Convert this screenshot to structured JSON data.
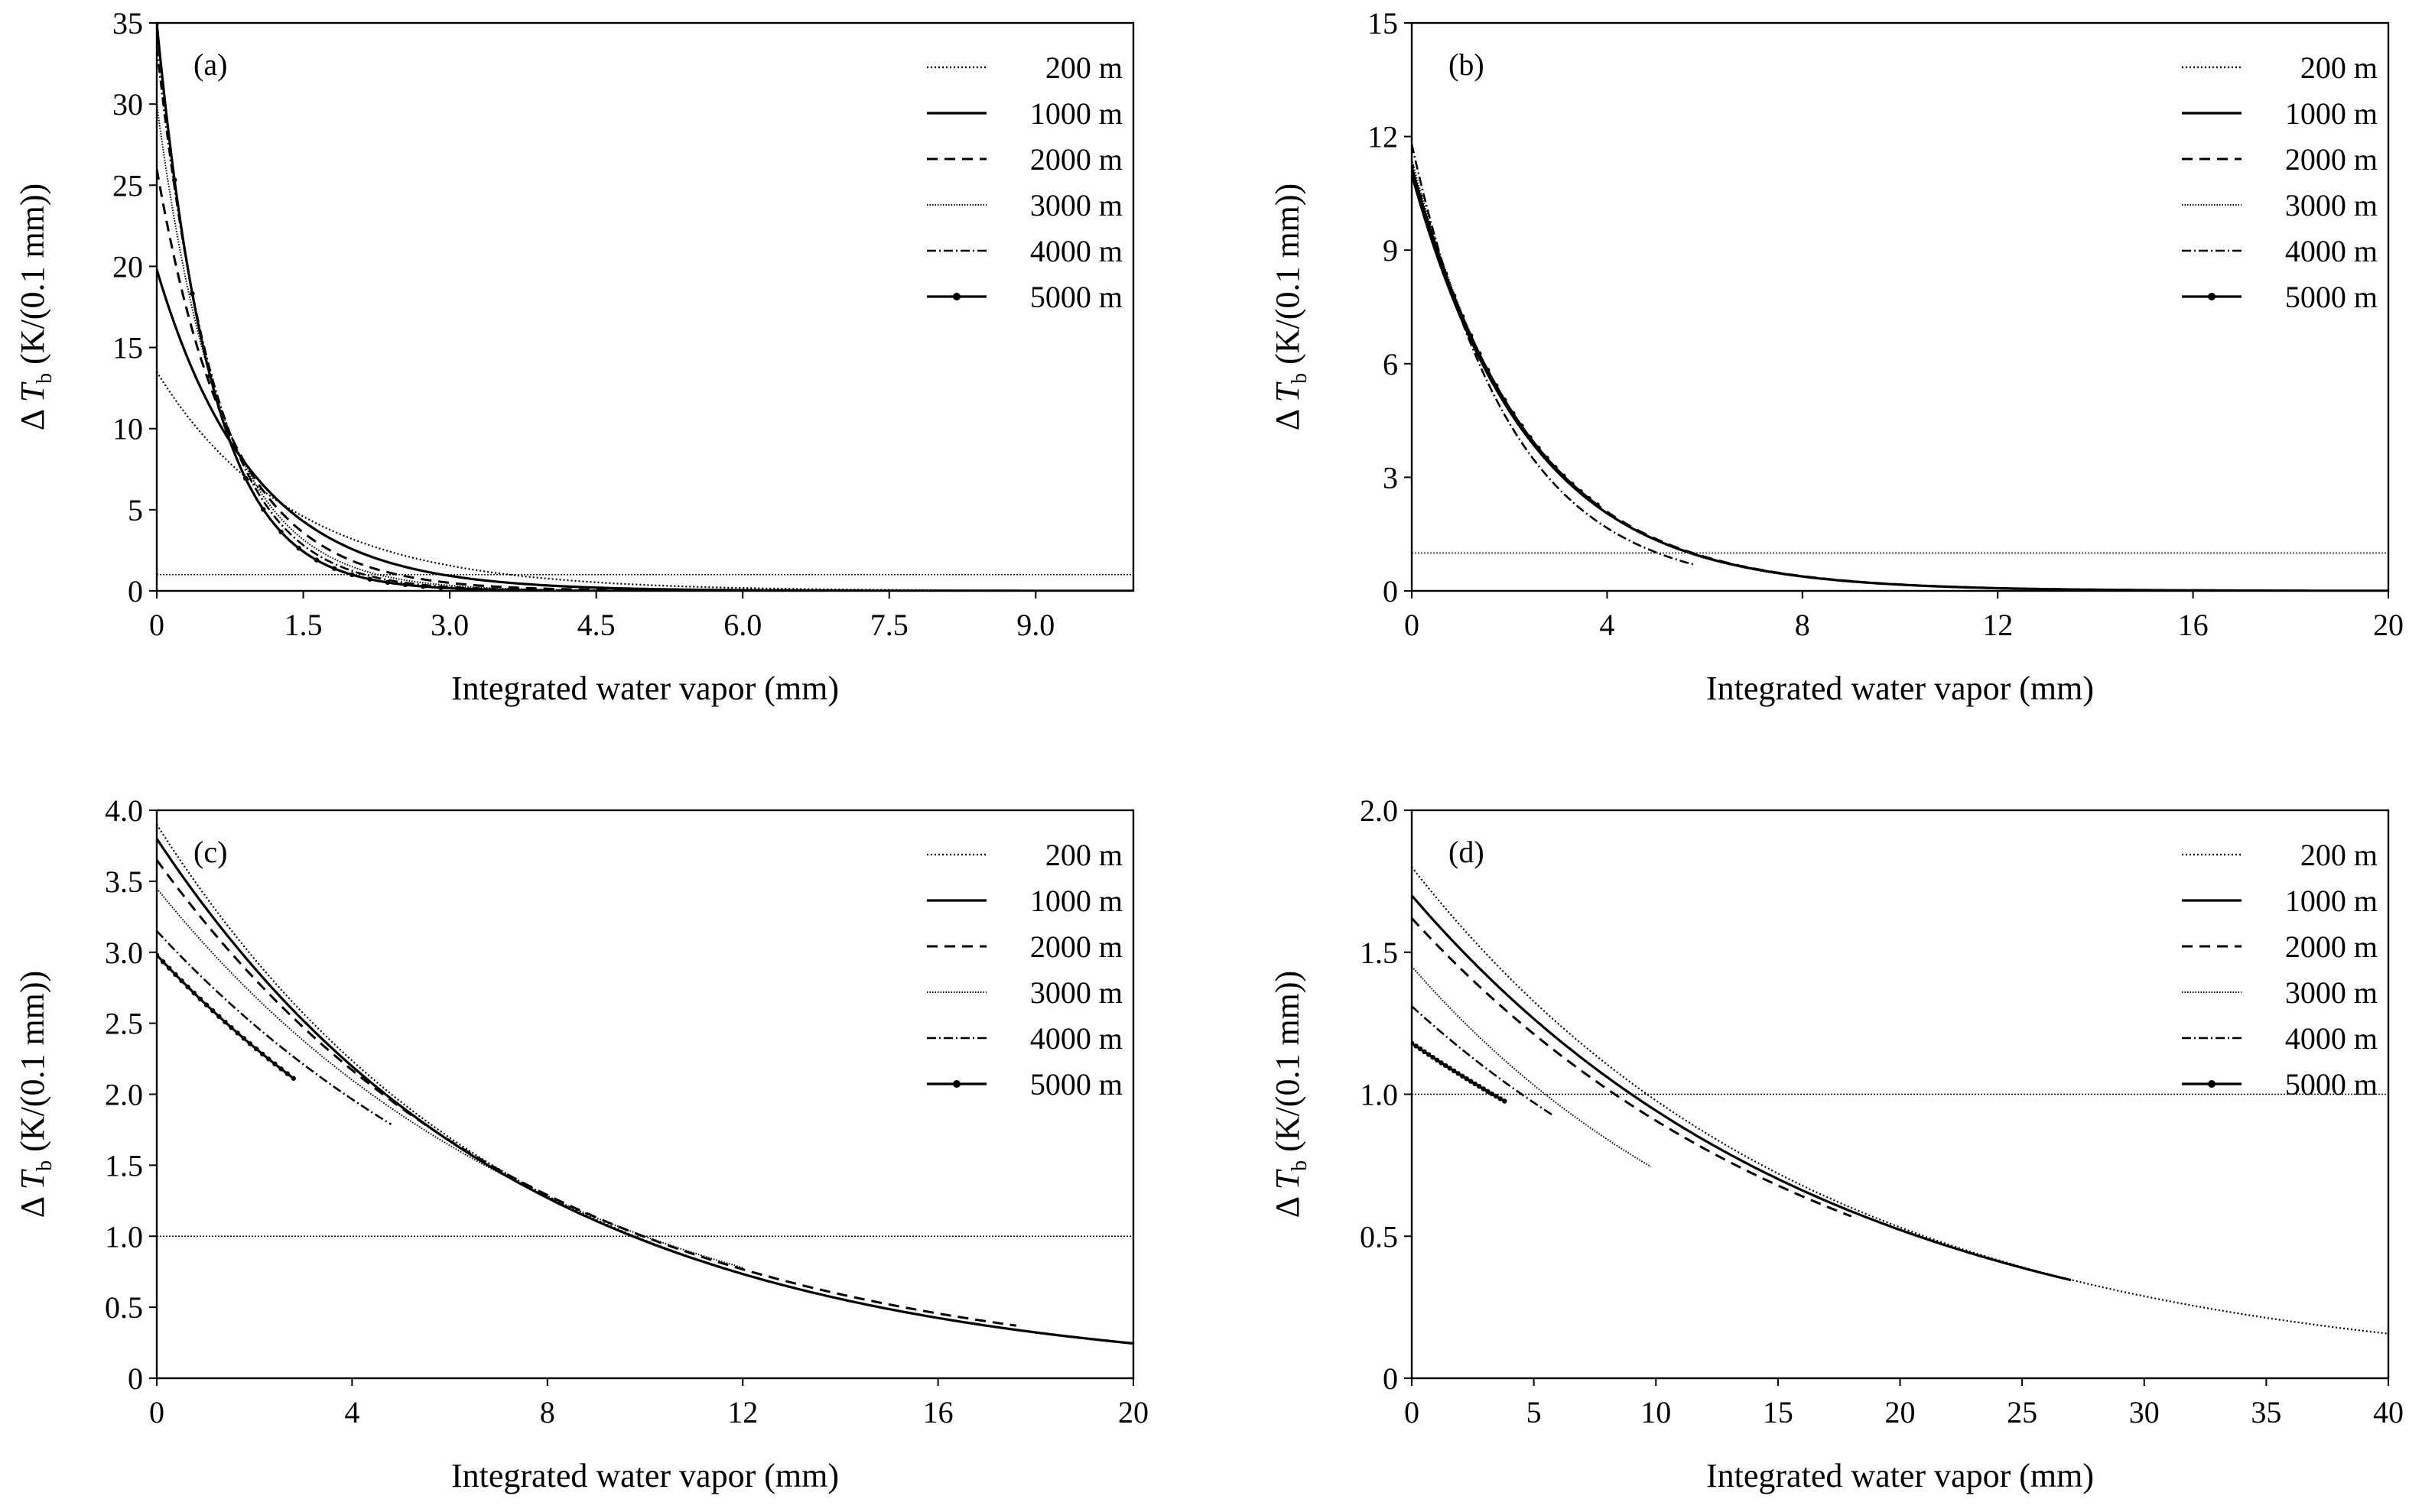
{
  "chart_data": [
    {
      "panel": "(a)",
      "type": "line",
      "xlabel": "Integrated water vapor (mm)",
      "ylabel": {
        "delta": "Δ",
        "symbol": "T",
        "sub": "b",
        "units": " (K/(0.1 mm))"
      },
      "xlim": [
        0,
        10
      ],
      "ylim": [
        0,
        35
      ],
      "xticks": [
        "0",
        "1.5",
        "3.0",
        "4.5",
        "6.0",
        "7.5",
        "9.0"
      ],
      "xtick_values": [
        0,
        1.5,
        3.0,
        4.5,
        6.0,
        7.5,
        9.0
      ],
      "yticks": [
        "0",
        "5",
        "10",
        "15",
        "20",
        "25",
        "30",
        "35"
      ],
      "ytick_values": [
        0,
        5,
        10,
        15,
        20,
        25,
        30,
        35
      ],
      "reference_line": {
        "y": 1
      },
      "legend": [
        "200 m",
        "1000 m",
        "2000 m",
        "3000 m",
        "4000 m",
        "5000 m"
      ],
      "series": [
        {
          "name": "200 m",
          "y0": 13.5,
          "k": 0.72,
          "x_max": 10
        },
        {
          "name": "1000 m",
          "y0": 19.8,
          "k": 1.02,
          "x_max": 10
        },
        {
          "name": "2000 m",
          "y0": 26.0,
          "k": 1.32,
          "x_max": 10
        },
        {
          "name": "3000 m",
          "y0": 30.0,
          "k": 1.5,
          "x_max": 8
        },
        {
          "name": "4000 m",
          "y0": 33.5,
          "k": 1.65,
          "x_max": 6
        },
        {
          "name": "5000 m",
          "y0": 35.0,
          "k": 1.78,
          "x_max": 4
        }
      ]
    },
    {
      "panel": "(b)",
      "type": "line",
      "xlabel": "Integrated water vapor (mm)",
      "ylabel": {
        "delta": "Δ",
        "symbol": "T",
        "sub": "b",
        "units": " (K/(0.1 mm))"
      },
      "xlim": [
        0,
        20
      ],
      "ylim": [
        0,
        15
      ],
      "xticks": [
        "0",
        "4",
        "8",
        "12",
        "16",
        "20"
      ],
      "xtick_values": [
        0,
        4,
        8,
        12,
        16,
        20
      ],
      "yticks": [
        "0",
        "3",
        "6",
        "9",
        "12",
        "15"
      ],
      "ytick_values": [
        0,
        3,
        6,
        9,
        12,
        15
      ],
      "reference_line": {
        "y": 1
      },
      "legend": [
        "200 m",
        "1000 m",
        "2000 m",
        "3000 m",
        "4000 m",
        "5000 m"
      ],
      "series": [
        {
          "name": "200 m",
          "y0": 11.0,
          "k": 0.42,
          "x_max": 20
        },
        {
          "name": "1000 m",
          "y0": 11.0,
          "k": 0.42,
          "x_max": 20
        },
        {
          "name": "2000 m",
          "y0": 11.2,
          "k": 0.42,
          "x_max": 18
        },
        {
          "name": "3000 m",
          "y0": 11.4,
          "k": 0.43,
          "x_max": 12
        },
        {
          "name": "4000 m",
          "y0": 11.8,
          "k": 0.49,
          "x_max": 5.8
        },
        {
          "name": "5000 m",
          "y0": 11.2,
          "k": 0.42,
          "x_max": 3.8
        }
      ]
    },
    {
      "panel": "(c)",
      "type": "line",
      "xlabel": "Integrated water vapor (mm)",
      "ylabel": {
        "delta": "Δ",
        "symbol": "T",
        "sub": "b",
        "units": " (K/(0.1 mm))"
      },
      "xlim": [
        0,
        20
      ],
      "ylim": [
        0,
        4.0
      ],
      "xticks": [
        "0",
        "4",
        "8",
        "12",
        "16",
        "20"
      ],
      "xtick_values": [
        0,
        4,
        8,
        12,
        16,
        20
      ],
      "yticks": [
        "0",
        "0.5",
        "1.0",
        "1.5",
        "2.0",
        "2.5",
        "3.0",
        "3.5",
        "4.0"
      ],
      "ytick_values": [
        0,
        0.5,
        1.0,
        1.5,
        2.0,
        2.5,
        3.0,
        3.5,
        4.0
      ],
      "reference_line": {
        "y": 1
      },
      "legend": [
        "200 m",
        "1000 m",
        "2000 m",
        "3000 m",
        "4000 m",
        "5000 m"
      ],
      "series": [
        {
          "name": "200 m",
          "y0": 3.9,
          "k": 0.139,
          "x_max": 20
        },
        {
          "name": "1000 m",
          "y0": 3.8,
          "k": 0.137,
          "x_max": 20
        },
        {
          "name": "2000 m",
          "y0": 3.65,
          "k": 0.13,
          "x_max": 17.6
        },
        {
          "name": "3000 m",
          "y0": 3.45,
          "k": 0.124,
          "x_max": 12
        },
        {
          "name": "4000 m",
          "y0": 3.15,
          "k": 0.118,
          "x_max": 4.8
        },
        {
          "name": "5000 m",
          "y0": 2.98,
          "k": 0.123,
          "x_max": 2.8
        }
      ]
    },
    {
      "panel": "(d)",
      "type": "line",
      "xlabel": "Integrated water vapor (mm)",
      "ylabel": {
        "delta": "Δ",
        "symbol": "T",
        "sub": "b",
        "units": " (K/(0.1 mm))"
      },
      "xlim": [
        0,
        40
      ],
      "ylim": [
        0,
        2.0
      ],
      "xticks": [
        "0",
        "5",
        "10",
        "15",
        "20",
        "25",
        "30",
        "35",
        "40"
      ],
      "xtick_values": [
        0,
        5,
        10,
        15,
        20,
        25,
        30,
        35,
        40
      ],
      "yticks": [
        "0",
        "0.5",
        "1.0",
        "1.5",
        "2.0"
      ],
      "ytick_values": [
        0,
        0.5,
        1.0,
        1.5,
        2.0
      ],
      "reference_line": {
        "y": 1
      },
      "legend": [
        "200 m",
        "1000 m",
        "2000 m",
        "3000 m",
        "4000 m",
        "5000 m"
      ],
      "series": [
        {
          "name": "200 m",
          "y0": 1.8,
          "k": 0.061,
          "x_max": 40
        },
        {
          "name": "1000 m",
          "y0": 1.7,
          "k": 0.059,
          "x_max": 27
        },
        {
          "name": "2000 m",
          "y0": 1.62,
          "k": 0.058,
          "x_max": 18
        },
        {
          "name": "3000 m",
          "y0": 1.45,
          "k": 0.068,
          "x_max": 9.8
        },
        {
          "name": "4000 m",
          "y0": 1.31,
          "k": 0.06,
          "x_max": 5.8
        },
        {
          "name": "5000 m",
          "y0": 1.18,
          "k": 0.05,
          "x_max": 3.8
        }
      ]
    }
  ]
}
